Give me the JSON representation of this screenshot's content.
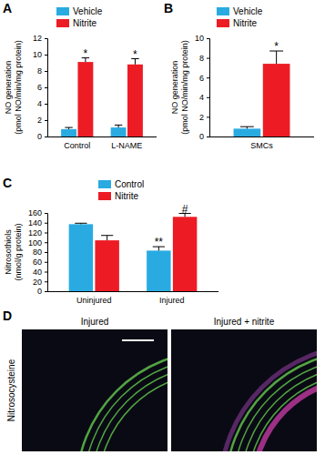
{
  "chart_data": [
    {
      "type": "bar",
      "title": "A",
      "y_label": [
        "NO generation",
        "(pmol NO/min/mg protein)"
      ],
      "categories": [
        "Control",
        "L-NAME"
      ],
      "series": [
        {
          "name": "Vehicle",
          "color": "#29abe2",
          "values": [
            0.9,
            1.1
          ],
          "errors": [
            0.2,
            0.3
          ]
        },
        {
          "name": "Nitrite",
          "color": "#ed1c24",
          "values": [
            9.1,
            8.8
          ],
          "errors": [
            0.5,
            0.7
          ]
        }
      ],
      "annotations": [
        {
          "text": "*",
          "series": 1,
          "index": 0
        },
        {
          "text": "*",
          "series": 1,
          "index": 1
        }
      ],
      "ylim": [
        0,
        12
      ],
      "yticks": [
        0,
        2,
        4,
        6,
        8,
        10,
        12
      ],
      "legend": "top-left"
    },
    {
      "type": "bar",
      "title": "B",
      "y_label": [
        "NO generation",
        "(pmol NO/min/mg protein)"
      ],
      "categories": [
        "SMCs"
      ],
      "series": [
        {
          "name": "Vehicle",
          "color": "#29abe2",
          "values": [
            0.8
          ],
          "errors": [
            0.2
          ]
        },
        {
          "name": "Nitrite",
          "color": "#ed1c24",
          "values": [
            7.4
          ],
          "errors": [
            1.3
          ]
        }
      ],
      "annotations": [
        {
          "text": "*",
          "series": 1,
          "index": 0
        }
      ],
      "ylim": [
        0,
        10
      ],
      "yticks": [
        0,
        2,
        4,
        6,
        8,
        10
      ],
      "legend": "top-left"
    },
    {
      "type": "bar",
      "title": "C",
      "y_label": [
        "Nitrosothiols",
        "(nmol/g protein)"
      ],
      "categories": [
        "Uninjured",
        "Injured"
      ],
      "series": [
        {
          "name": "Control",
          "color": "#29abe2",
          "values": [
            137,
            83
          ],
          "errors": [
            2,
            8
          ]
        },
        {
          "name": "Nitrite",
          "color": "#ed1c24",
          "values": [
            104,
            152
          ],
          "errors": [
            10,
            7
          ]
        }
      ],
      "annotations": [
        {
          "text": "**",
          "series": 0,
          "index": 1
        },
        {
          "text": "#",
          "series": 1,
          "index": 1
        }
      ],
      "ylim": [
        0,
        160
      ],
      "yticks": [
        0,
        20,
        40,
        60,
        80,
        100,
        120,
        140,
        160
      ],
      "legend": "top-left"
    }
  ],
  "image_panel": {
    "label": "D",
    "titles": [
      "Injured",
      "Injured + nitrite"
    ],
    "row_label": "Nitrosocysteine"
  }
}
